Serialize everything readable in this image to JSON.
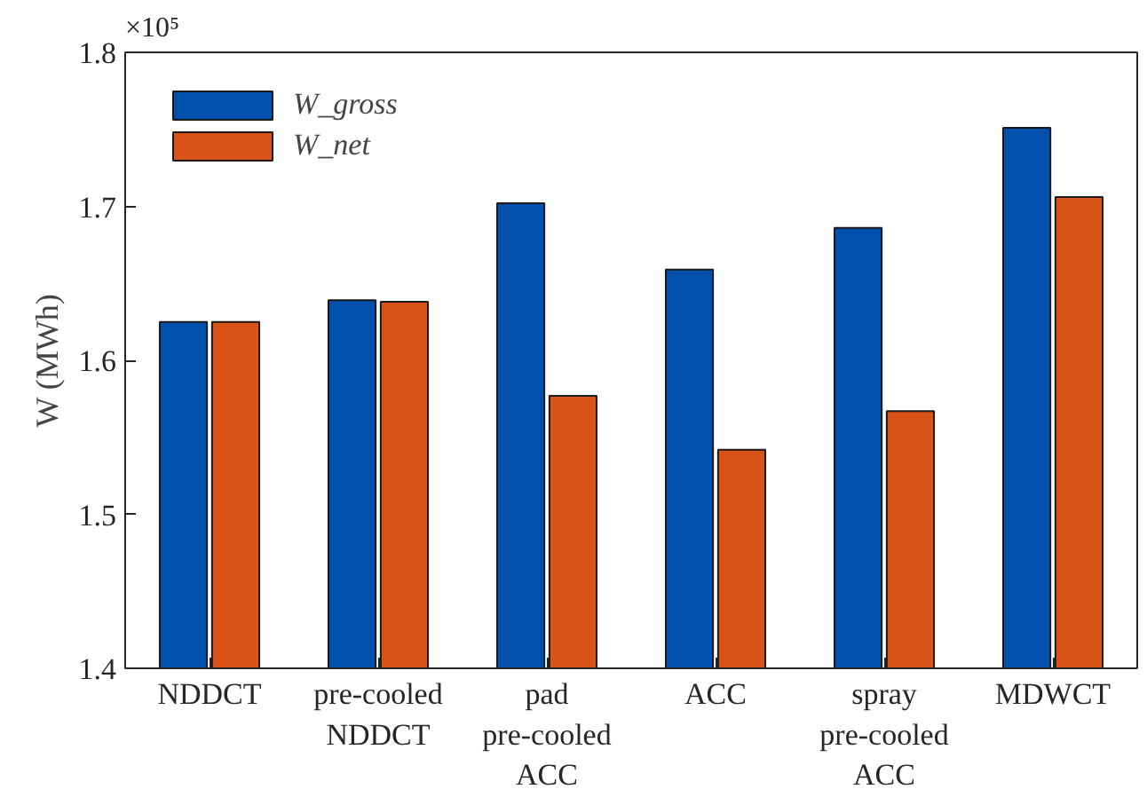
{
  "chart_data": {
    "type": "bar",
    "ylabel": "W (MWh)",
    "categories": [
      "NDDCT",
      "pre-cooled\nNDDCT",
      "pad\npre-cooled\nACC",
      "ACC",
      "spray\npre-cooled\nACC",
      "MDWCT"
    ],
    "series": [
      {
        "name": "W_gross",
        "color": "#0051ae",
        "values": [
          1.625,
          1.639,
          1.702,
          1.659,
          1.686,
          1.751
        ]
      },
      {
        "name": "W_net",
        "color": "#d95319",
        "values": [
          1.625,
          1.638,
          1.577,
          1.542,
          1.567,
          1.706
        ]
      }
    ],
    "ylim": [
      1.4,
      1.8
    ],
    "yticks": [
      1.4,
      1.5,
      1.6,
      1.7,
      1.8
    ],
    "annotations": [
      "×10⁵"
    ],
    "grid": false,
    "legend": "top left"
  }
}
